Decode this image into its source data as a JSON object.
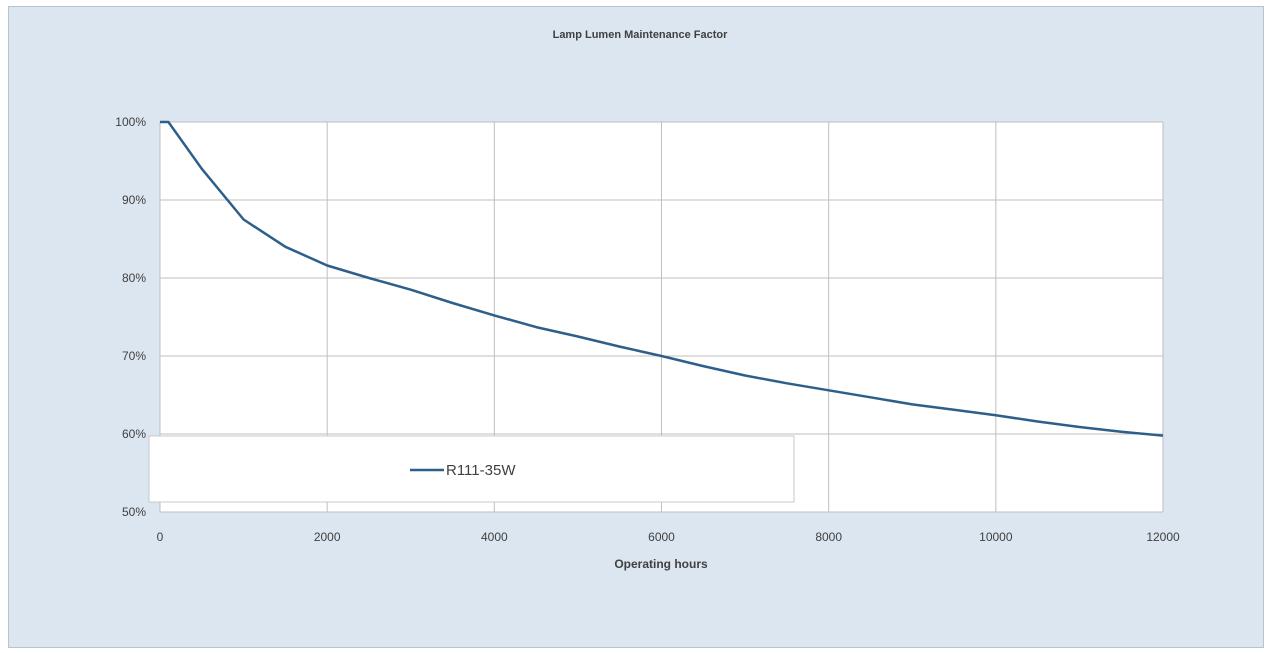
{
  "chart_data": {
    "type": "line",
    "title": "Lamp Lumen Maintenance Factor",
    "xlabel": "Operating hours",
    "ylabel": "",
    "xlim": [
      0,
      12000
    ],
    "ylim": [
      0.5,
      1.0
    ],
    "x_ticks": [
      "0",
      "2000",
      "4000",
      "6000",
      "8000",
      "10000",
      "12000"
    ],
    "y_ticks": [
      "50%",
      "60%",
      "70%",
      "80%",
      "90%",
      "100%"
    ],
    "grid": true,
    "legend_position": "bottom-left",
    "series": [
      {
        "name": "R111-35W",
        "color": "#2e5f8a",
        "x": [
          0,
          100,
          500,
          1000,
          1500,
          2000,
          2500,
          3000,
          3500,
          4000,
          4500,
          5000,
          5500,
          6000,
          6500,
          7000,
          7500,
          8000,
          8500,
          9000,
          9500,
          10000,
          10500,
          11000,
          11500,
          12000
        ],
        "y": [
          1.0,
          1.0,
          0.94,
          0.875,
          0.84,
          0.816,
          0.8,
          0.785,
          0.768,
          0.752,
          0.737,
          0.725,
          0.712,
          0.7,
          0.687,
          0.675,
          0.665,
          0.656,
          0.647,
          0.638,
          0.631,
          0.624,
          0.616,
          0.609,
          0.603,
          0.598
        ]
      }
    ]
  }
}
